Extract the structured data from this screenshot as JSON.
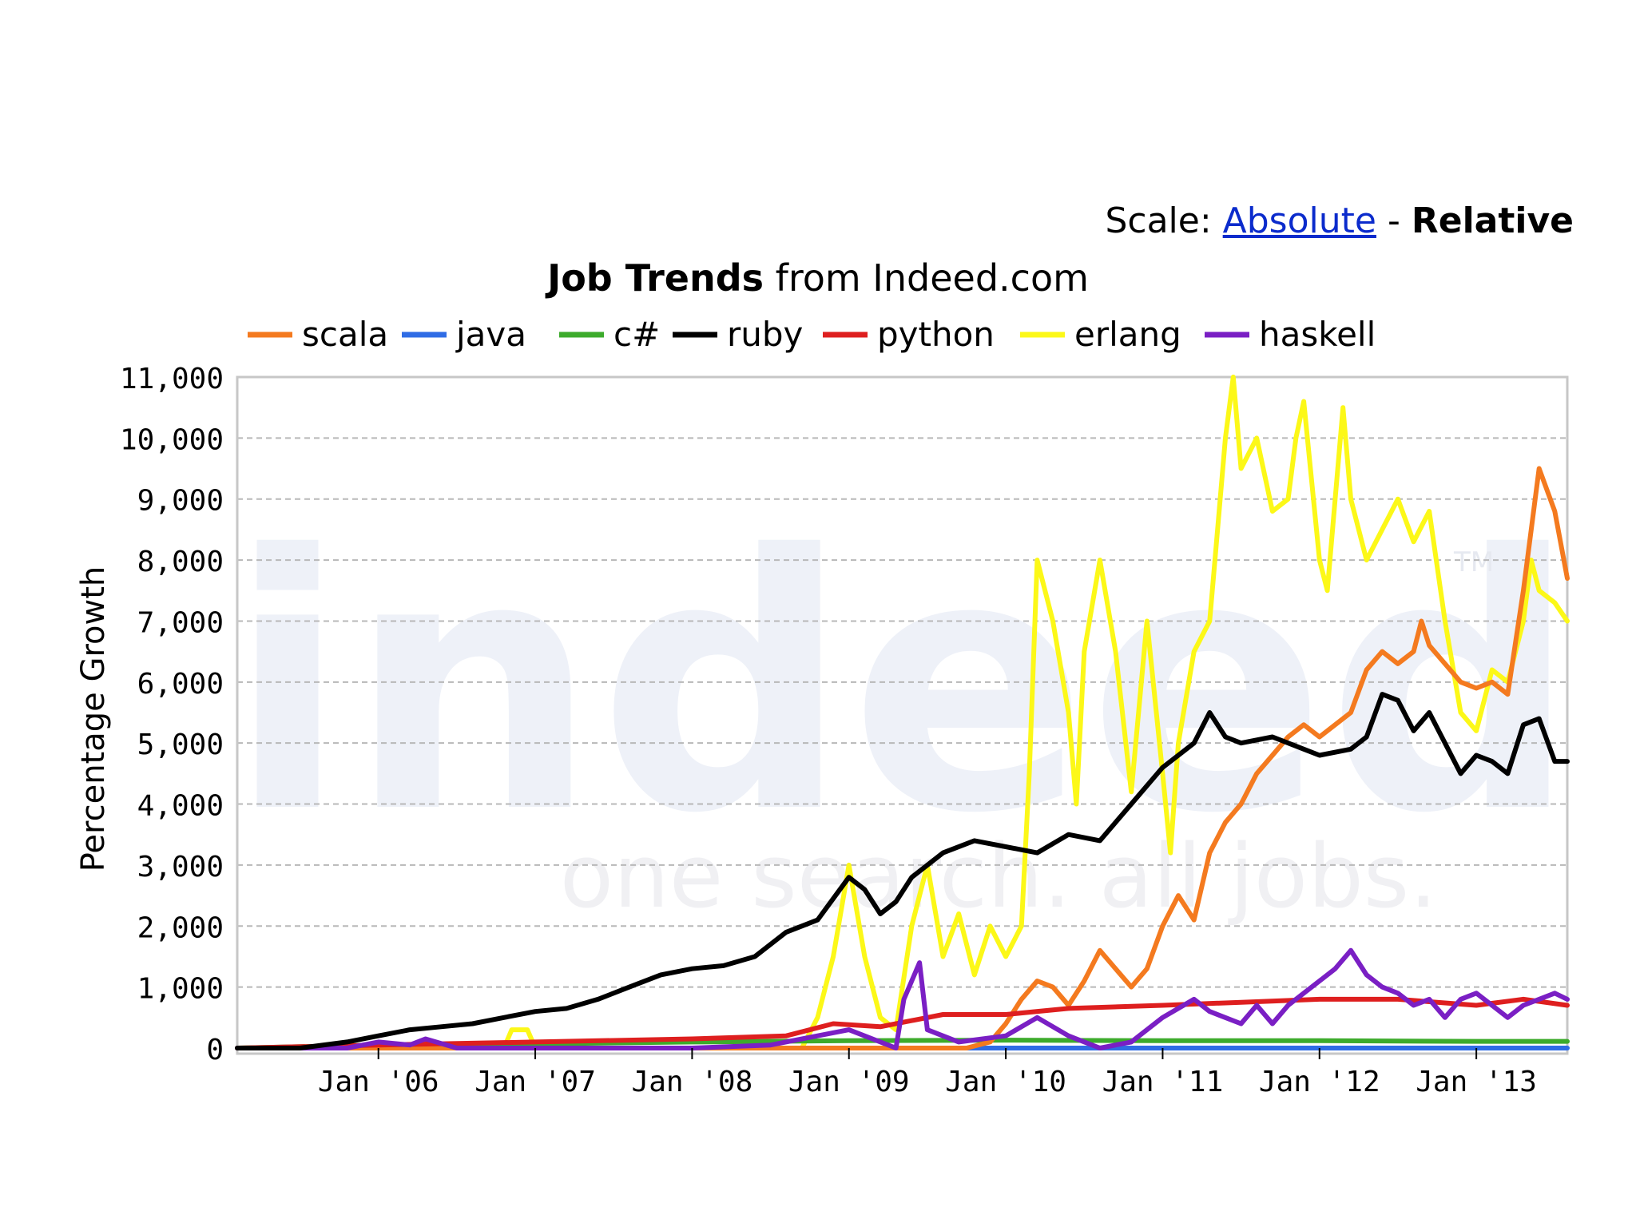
{
  "scale": {
    "label": "Scale:",
    "absolute": "Absolute",
    "separator": "-",
    "relative": "Relative",
    "selected": "Relative"
  },
  "header": {
    "title_bold": "Job Trends",
    "title_rest": "from Indeed.com"
  },
  "watermark": {
    "logo": "indeed",
    "tagline": "one search. all jobs.",
    "trademark": "TM"
  },
  "chart_data": {
    "type": "line",
    "title": "Job Trends from Indeed.com",
    "xlabel": "",
    "ylabel": "Percentage Growth",
    "ylim": [
      0,
      11000
    ],
    "xlim": [
      2005.1,
      2013.58
    ],
    "grid": true,
    "legend_position": "top",
    "x_tick_labels": [
      "Jan '06",
      "Jan '07",
      "Jan '08",
      "Jan '09",
      "Jan '10",
      "Jan '11",
      "Jan '12",
      "Jan '13"
    ],
    "x_tick_values": [
      2006,
      2007,
      2008,
      2009,
      2010,
      2011,
      2012,
      2013
    ],
    "y_tick_labels": [
      "0",
      "1,000",
      "2,000",
      "3,000",
      "4,000",
      "5,000",
      "6,000",
      "7,000",
      "8,000",
      "9,000",
      "10,000",
      "11,000"
    ],
    "y_tick_values": [
      0,
      1000,
      2000,
      3000,
      4000,
      5000,
      6000,
      7000,
      8000,
      9000,
      10000,
      11000
    ],
    "series": [
      {
        "name": "scala",
        "color": "#f47a1f",
        "points": [
          [
            2005.1,
            0
          ],
          [
            2006.0,
            0
          ],
          [
            2007.0,
            0
          ],
          [
            2008.0,
            0
          ],
          [
            2009.0,
            0
          ],
          [
            2009.5,
            0
          ],
          [
            2009.75,
            0
          ],
          [
            2009.9,
            100
          ],
          [
            2010.0,
            400
          ],
          [
            2010.1,
            800
          ],
          [
            2010.2,
            1100
          ],
          [
            2010.3,
            1000
          ],
          [
            2010.4,
            700
          ],
          [
            2010.5,
            1100
          ],
          [
            2010.6,
            1600
          ],
          [
            2010.7,
            1300
          ],
          [
            2010.8,
            1000
          ],
          [
            2010.9,
            1300
          ],
          [
            2011.0,
            2000
          ],
          [
            2011.1,
            2500
          ],
          [
            2011.2,
            2100
          ],
          [
            2011.3,
            3200
          ],
          [
            2011.4,
            3700
          ],
          [
            2011.5,
            4000
          ],
          [
            2011.6,
            4500
          ],
          [
            2011.7,
            4800
          ],
          [
            2011.8,
            5100
          ],
          [
            2011.9,
            5300
          ],
          [
            2012.0,
            5100
          ],
          [
            2012.1,
            5300
          ],
          [
            2012.2,
            5500
          ],
          [
            2012.3,
            6200
          ],
          [
            2012.4,
            6500
          ],
          [
            2012.5,
            6300
          ],
          [
            2012.6,
            6500
          ],
          [
            2012.65,
            7000
          ],
          [
            2012.7,
            6600
          ],
          [
            2012.8,
            6300
          ],
          [
            2012.9,
            6000
          ],
          [
            2013.0,
            5900
          ],
          [
            2013.1,
            6000
          ],
          [
            2013.2,
            5800
          ],
          [
            2013.3,
            7500
          ],
          [
            2013.4,
            9500
          ],
          [
            2013.5,
            8800
          ],
          [
            2013.58,
            7700
          ]
        ]
      },
      {
        "name": "java",
        "color": "#2f6ce5",
        "points": [
          [
            2005.1,
            0
          ],
          [
            2006.0,
            0
          ],
          [
            2007.0,
            0
          ],
          [
            2008.0,
            0
          ],
          [
            2009.0,
            0
          ],
          [
            2010.0,
            0
          ],
          [
            2011.0,
            0
          ],
          [
            2012.0,
            0
          ],
          [
            2013.0,
            0
          ],
          [
            2013.58,
            0
          ]
        ]
      },
      {
        "name": "c#",
        "color": "#3dab2c",
        "points": [
          [
            2005.1,
            0
          ],
          [
            2006.0,
            50
          ],
          [
            2007.0,
            70
          ],
          [
            2008.0,
            100
          ],
          [
            2009.0,
            120
          ],
          [
            2010.0,
            130
          ],
          [
            2011.0,
            120
          ],
          [
            2012.0,
            120
          ],
          [
            2013.0,
            110
          ],
          [
            2013.58,
            110
          ]
        ]
      },
      {
        "name": "ruby",
        "color": "#000000",
        "points": [
          [
            2005.1,
            0
          ],
          [
            2005.5,
            0
          ],
          [
            2005.8,
            100
          ],
          [
            2006.0,
            200
          ],
          [
            2006.2,
            300
          ],
          [
            2006.4,
            350
          ],
          [
            2006.6,
            400
          ],
          [
            2006.8,
            500
          ],
          [
            2007.0,
            600
          ],
          [
            2007.2,
            650
          ],
          [
            2007.4,
            800
          ],
          [
            2007.6,
            1000
          ],
          [
            2007.8,
            1200
          ],
          [
            2008.0,
            1300
          ],
          [
            2008.2,
            1350
          ],
          [
            2008.4,
            1500
          ],
          [
            2008.6,
            1900
          ],
          [
            2008.8,
            2100
          ],
          [
            2009.0,
            2800
          ],
          [
            2009.1,
            2600
          ],
          [
            2009.2,
            2200
          ],
          [
            2009.3,
            2400
          ],
          [
            2009.4,
            2800
          ],
          [
            2009.6,
            3200
          ],
          [
            2009.8,
            3400
          ],
          [
            2010.0,
            3300
          ],
          [
            2010.2,
            3200
          ],
          [
            2010.4,
            3500
          ],
          [
            2010.6,
            3400
          ],
          [
            2010.8,
            4000
          ],
          [
            2011.0,
            4600
          ],
          [
            2011.1,
            4800
          ],
          [
            2011.2,
            5000
          ],
          [
            2011.3,
            5500
          ],
          [
            2011.4,
            5100
          ],
          [
            2011.5,
            5000
          ],
          [
            2011.7,
            5100
          ],
          [
            2011.9,
            4900
          ],
          [
            2012.0,
            4800
          ],
          [
            2012.2,
            4900
          ],
          [
            2012.3,
            5100
          ],
          [
            2012.4,
            5800
          ],
          [
            2012.5,
            5700
          ],
          [
            2012.6,
            5200
          ],
          [
            2012.7,
            5500
          ],
          [
            2012.8,
            5000
          ],
          [
            2012.9,
            4500
          ],
          [
            2013.0,
            4800
          ],
          [
            2013.1,
            4700
          ],
          [
            2013.2,
            4500
          ],
          [
            2013.3,
            5300
          ],
          [
            2013.4,
            5400
          ],
          [
            2013.5,
            4700
          ],
          [
            2013.58,
            4700
          ]
        ]
      },
      {
        "name": "python",
        "color": "#de1f1f",
        "points": [
          [
            2005.1,
            0
          ],
          [
            2006.0,
            50
          ],
          [
            2007.0,
            100
          ],
          [
            2008.0,
            150
          ],
          [
            2008.6,
            200
          ],
          [
            2008.9,
            400
          ],
          [
            2009.2,
            350
          ],
          [
            2009.6,
            550
          ],
          [
            2010.0,
            550
          ],
          [
            2010.4,
            650
          ],
          [
            2011.0,
            700
          ],
          [
            2011.5,
            750
          ],
          [
            2012.0,
            800
          ],
          [
            2012.5,
            800
          ],
          [
            2013.0,
            700
          ],
          [
            2013.3,
            800
          ],
          [
            2013.58,
            700
          ]
        ]
      },
      {
        "name": "erlang",
        "color": "#fcf818",
        "points": [
          [
            2005.1,
            0
          ],
          [
            2006.8,
            0
          ],
          [
            2006.85,
            300
          ],
          [
            2006.95,
            300
          ],
          [
            2007.0,
            0
          ],
          [
            2008.7,
            0
          ],
          [
            2008.8,
            500
          ],
          [
            2008.9,
            1500
          ],
          [
            2009.0,
            3000
          ],
          [
            2009.1,
            1500
          ],
          [
            2009.2,
            500
          ],
          [
            2009.3,
            300
          ],
          [
            2009.4,
            2000
          ],
          [
            2009.5,
            3000
          ],
          [
            2009.6,
            1500
          ],
          [
            2009.7,
            2200
          ],
          [
            2009.8,
            1200
          ],
          [
            2009.9,
            2000
          ],
          [
            2010.0,
            1500
          ],
          [
            2010.1,
            2000
          ],
          [
            2010.15,
            4500
          ],
          [
            2010.2,
            8000
          ],
          [
            2010.3,
            7000
          ],
          [
            2010.4,
            5500
          ],
          [
            2010.45,
            4000
          ],
          [
            2010.5,
            6500
          ],
          [
            2010.6,
            8000
          ],
          [
            2010.7,
            6500
          ],
          [
            2010.8,
            4200
          ],
          [
            2010.9,
            7000
          ],
          [
            2011.0,
            4500
          ],
          [
            2011.05,
            3200
          ],
          [
            2011.1,
            5000
          ],
          [
            2011.2,
            6500
          ],
          [
            2011.3,
            7000
          ],
          [
            2011.35,
            8500
          ],
          [
            2011.4,
            10000
          ],
          [
            2011.45,
            11000
          ],
          [
            2011.5,
            9500
          ],
          [
            2011.6,
            10000
          ],
          [
            2011.7,
            8800
          ],
          [
            2011.8,
            9000
          ],
          [
            2011.85,
            10000
          ],
          [
            2011.9,
            10600
          ],
          [
            2012.0,
            8000
          ],
          [
            2012.05,
            7500
          ],
          [
            2012.1,
            9000
          ],
          [
            2012.15,
            10500
          ],
          [
            2012.2,
            9000
          ],
          [
            2012.3,
            8000
          ],
          [
            2012.4,
            8500
          ],
          [
            2012.5,
            9000
          ],
          [
            2012.6,
            8300
          ],
          [
            2012.7,
            8800
          ],
          [
            2012.8,
            7000
          ],
          [
            2012.9,
            5500
          ],
          [
            2013.0,
            5200
          ],
          [
            2013.1,
            6200
          ],
          [
            2013.2,
            6000
          ],
          [
            2013.3,
            7000
          ],
          [
            2013.35,
            8000
          ],
          [
            2013.4,
            7500
          ],
          [
            2013.5,
            7300
          ],
          [
            2013.58,
            7000
          ]
        ]
      },
      {
        "name": "haskell",
        "color": "#7a1fc4",
        "points": [
          [
            2005.1,
            0
          ],
          [
            2005.8,
            0
          ],
          [
            2006.0,
            100
          ],
          [
            2006.2,
            50
          ],
          [
            2006.3,
            150
          ],
          [
            2006.5,
            0
          ],
          [
            2007.0,
            0
          ],
          [
            2008.0,
            0
          ],
          [
            2008.5,
            50
          ],
          [
            2008.8,
            200
          ],
          [
            2009.0,
            300
          ],
          [
            2009.3,
            0
          ],
          [
            2009.35,
            800
          ],
          [
            2009.45,
            1400
          ],
          [
            2009.5,
            300
          ],
          [
            2009.7,
            100
          ],
          [
            2010.0,
            200
          ],
          [
            2010.2,
            500
          ],
          [
            2010.4,
            200
          ],
          [
            2010.6,
            0
          ],
          [
            2010.8,
            100
          ],
          [
            2011.0,
            500
          ],
          [
            2011.2,
            800
          ],
          [
            2011.3,
            600
          ],
          [
            2011.5,
            400
          ],
          [
            2011.6,
            700
          ],
          [
            2011.7,
            400
          ],
          [
            2011.8,
            700
          ],
          [
            2012.0,
            1100
          ],
          [
            2012.1,
            1300
          ],
          [
            2012.2,
            1600
          ],
          [
            2012.3,
            1200
          ],
          [
            2012.4,
            1000
          ],
          [
            2012.5,
            900
          ],
          [
            2012.6,
            700
          ],
          [
            2012.7,
            800
          ],
          [
            2012.8,
            500
          ],
          [
            2012.9,
            800
          ],
          [
            2013.0,
            900
          ],
          [
            2013.1,
            700
          ],
          [
            2013.2,
            500
          ],
          [
            2013.3,
            700
          ],
          [
            2013.4,
            800
          ],
          [
            2013.5,
            900
          ],
          [
            2013.58,
            800
          ]
        ]
      }
    ]
  }
}
